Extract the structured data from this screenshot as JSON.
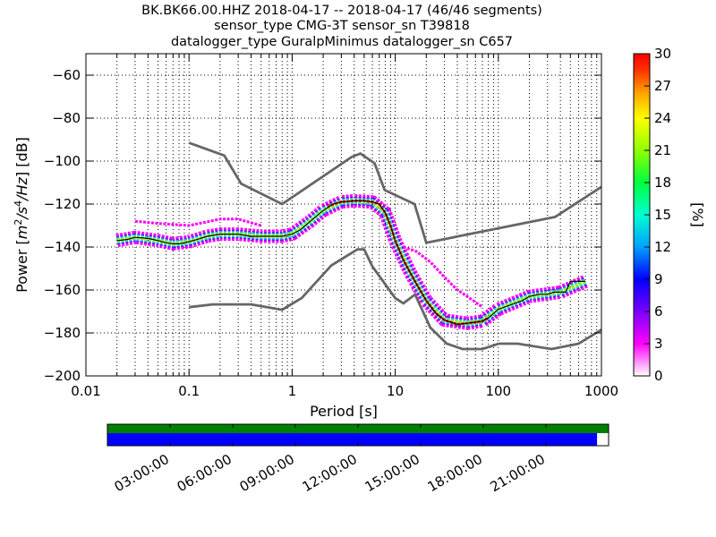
{
  "chart_data": {
    "type": "heatmap",
    "title_lines": [
      "BK.BK66.00.HHZ   2018-04-17 -- 2018-04-17  (46/46 segments)",
      "sensor_type CMG-3T sensor_sn T39818",
      "datalogger_type GuralpMinimus datalogger_sn C657"
    ],
    "xlabel": "Period [s]",
    "ylabel_parts": [
      "Power [",
      "m",
      "2",
      "/",
      "s",
      "4",
      "/",
      "Hz",
      "] [dB]"
    ],
    "x_scale": "log",
    "xlim": [
      0.01,
      1000
    ],
    "ylim": [
      -200,
      -50
    ],
    "x_ticks": [
      "0.01",
      "0.1",
      "1",
      "10",
      "100",
      "1000"
    ],
    "y_ticks": [
      "−200",
      "−180",
      "−160",
      "−140",
      "−120",
      "−100",
      "−80",
      "−60"
    ],
    "y_tick_values": [
      -200,
      -180,
      -160,
      -140,
      -120,
      -100,
      -80,
      -60
    ],
    "grid": true,
    "colorbar": {
      "label": "[%]",
      "range": [
        0,
        30
      ],
      "ticks": [
        "0",
        "3",
        "6",
        "9",
        "12",
        "15",
        "18",
        "21",
        "24",
        "27",
        "30"
      ],
      "colors": [
        "#ffffff",
        "#ff00ff",
        "#7a00ff",
        "#0000ff",
        "#00a0ff",
        "#00ffd0",
        "#00ff40",
        "#90ff00",
        "#ffff00",
        "#ffa000",
        "#ff3000",
        "#ff0000"
      ]
    },
    "noise_models": [
      {
        "name": "NHNM",
        "color": "#666666",
        "x": [
          0.1,
          0.22,
          0.32,
          0.8,
          3.8,
          4.6,
          6.3,
          7.9,
          15.4,
          20,
          354.8,
          1000
        ],
        "y": [
          -91.5,
          -97.4,
          -110.5,
          -120,
          -98,
          -96.5,
          -101,
          -113.5,
          -120,
          -138,
          -126,
          -112
        ]
      },
      {
        "name": "NLNM",
        "color": "#666666",
        "x": [
          0.1,
          0.17,
          0.4,
          0.8,
          1.24,
          2.4,
          4.3,
          5,
          6,
          10,
          12,
          15.6,
          21.9,
          31.6,
          45,
          70,
          101,
          154,
          328,
          600,
          1000
        ],
        "y": [
          -168,
          -166.7,
          -166.7,
          -169.2,
          -163.7,
          -148.6,
          -141.1,
          -141.1,
          -149,
          -163.8,
          -166.2,
          -162.1,
          -177.5,
          -185,
          -187.5,
          -187.5,
          -185,
          -185,
          -187.5,
          -185,
          -178.5
        ]
      }
    ],
    "mode_curve": {
      "name": "mode",
      "color": "#000000",
      "x": [
        0.02,
        0.025,
        0.03,
        0.04,
        0.05,
        0.06,
        0.07,
        0.08,
        0.1,
        0.12,
        0.15,
        0.2,
        0.25,
        0.3,
        0.4,
        0.5,
        0.6,
        0.8,
        1,
        1.2,
        1.5,
        2,
        2.5,
        3,
        4,
        5,
        6,
        7,
        8,
        9,
        10,
        12,
        14,
        16,
        20,
        25,
        30,
        40,
        50,
        60,
        70,
        80,
        100,
        130,
        170,
        200,
        250,
        300,
        350,
        400,
        450,
        500,
        600,
        700
      ],
      "y": [
        -137,
        -136.5,
        -135.5,
        -136,
        -137,
        -138,
        -138.5,
        -138.5,
        -137.5,
        -136.5,
        -135,
        -134,
        -134,
        -134,
        -135,
        -135,
        -135,
        -135,
        -134,
        -132,
        -128,
        -123,
        -120,
        -119,
        -118.5,
        -118.5,
        -119,
        -120,
        -124,
        -130,
        -137,
        -146,
        -152,
        -157,
        -165,
        -171,
        -174,
        -176,
        -175.5,
        -175,
        -174.5,
        -173,
        -169,
        -167,
        -165,
        -163,
        -162,
        -162,
        -161,
        -161,
        -161,
        -156,
        -156,
        -156
      ]
    },
    "density": [
      {
        "x": [
          0.02,
          0.03,
          0.05,
          0.07,
          0.1,
          0.15,
          0.2,
          0.3,
          0.5,
          0.8,
          1,
          1.5,
          2,
          3,
          4,
          6,
          8,
          10,
          14,
          20,
          30,
          50,
          70,
          100,
          200,
          400,
          700
        ],
        "y": [
          -137,
          -135.5,
          -137,
          -138.5,
          -137.5,
          -135,
          -134,
          -134,
          -135,
          -135,
          -134,
          -128,
          -123,
          -119,
          -118.5,
          -119,
          -124,
          -137,
          -152,
          -165,
          -174,
          -175.5,
          -174.5,
          -169,
          -163,
          -161,
          -156
        ],
        "color": "#ff00ff",
        "width": 15
      },
      {
        "x": [
          0.02,
          0.03,
          0.05,
          0.07,
          0.1,
          0.15,
          0.2,
          0.3,
          0.5,
          0.8,
          1,
          1.5,
          2,
          3,
          4,
          6,
          8,
          10,
          14,
          20,
          30,
          50,
          70,
          100,
          200,
          400,
          700
        ],
        "y": [
          -137,
          -135.5,
          -137,
          -138.5,
          -137.5,
          -135,
          -134,
          -134,
          -135,
          -135,
          -134,
          -128,
          -123,
          -119,
          -118.5,
          -119,
          -124,
          -137,
          -152,
          -165,
          -174,
          -175.5,
          -174.5,
          -169,
          -163,
          -161,
          -156
        ],
        "color": "#7a00ff",
        "width": 10
      },
      {
        "x": [
          0.02,
          0.03,
          0.05,
          0.07,
          0.1,
          0.15,
          0.2,
          0.3,
          0.5,
          0.8,
          1,
          1.5,
          2,
          3,
          4,
          6,
          8,
          10,
          14,
          20,
          30,
          50,
          70,
          100,
          200,
          400,
          700
        ],
        "y": [
          -137,
          -135.5,
          -137,
          -138.5,
          -137.5,
          -135,
          -134,
          -134,
          -135,
          -135,
          -134,
          -128,
          -123,
          -119,
          -118.5,
          -119,
          -124,
          -137,
          -152,
          -165,
          -174,
          -175.5,
          -174.5,
          -169,
          -163,
          -161,
          -156
        ],
        "color": "#00d0ff",
        "width": 7
      },
      {
        "x": [
          0.02,
          0.03,
          0.05,
          0.07,
          0.1,
          0.15,
          0.2,
          0.3,
          0.5,
          0.8,
          1,
          1.5,
          2,
          3,
          4,
          6,
          8,
          10,
          14,
          20,
          30,
          50,
          70,
          100,
          200,
          400,
          700
        ],
        "y": [
          -137,
          -135.5,
          -137,
          -138.5,
          -137.5,
          -135,
          -134,
          -134,
          -135,
          -135,
          -134,
          -128,
          -123,
          -119,
          -118.5,
          -119,
          -124,
          -137,
          -152,
          -165,
          -174,
          -175.5,
          -174.5,
          -169,
          -163,
          -161,
          -156
        ],
        "color": "#90ff00",
        "width": 4
      },
      {
        "x": [
          2.2,
          3,
          4,
          5,
          6,
          7,
          8,
          9,
          10,
          12,
          14,
          16,
          20,
          25,
          30,
          40,
          50,
          60,
          70,
          80
        ],
        "y": [
          -121,
          -119,
          -118.5,
          -118.5,
          -119,
          -120,
          -124,
          -130,
          -137,
          -146,
          -152,
          -157,
          -165,
          -171,
          -174,
          -176,
          -175.5,
          -175,
          -174.5,
          -173
        ],
        "color": "#ff2000",
        "width": 3
      },
      {
        "x": [
          0.03,
          0.05,
          0.1,
          0.2,
          0.3,
          0.5
        ],
        "y": [
          -128,
          -129,
          -130,
          -127,
          -127,
          -130
        ],
        "color": "#ff00ff",
        "width": 3
      },
      {
        "x": [
          12,
          16,
          22,
          30,
          40,
          50,
          70
        ],
        "y": [
          -140,
          -142,
          -147,
          -154,
          -160,
          -163,
          -168
        ],
        "color": "#ff00ff",
        "width": 3
      }
    ]
  },
  "time_axis": {
    "tick_labels": [
      "03:00:00",
      "06:00:00",
      "09:00:00",
      "12:00:00",
      "15:00:00",
      "18:00:00",
      "21:00:00"
    ],
    "tick_hours": [
      3,
      6,
      9,
      12,
      15,
      18,
      21
    ],
    "range_hours": [
      0,
      24
    ],
    "coverage_fraction": 0.977,
    "colors": {
      "top": "#008000",
      "bottom": "#0000ff"
    }
  }
}
